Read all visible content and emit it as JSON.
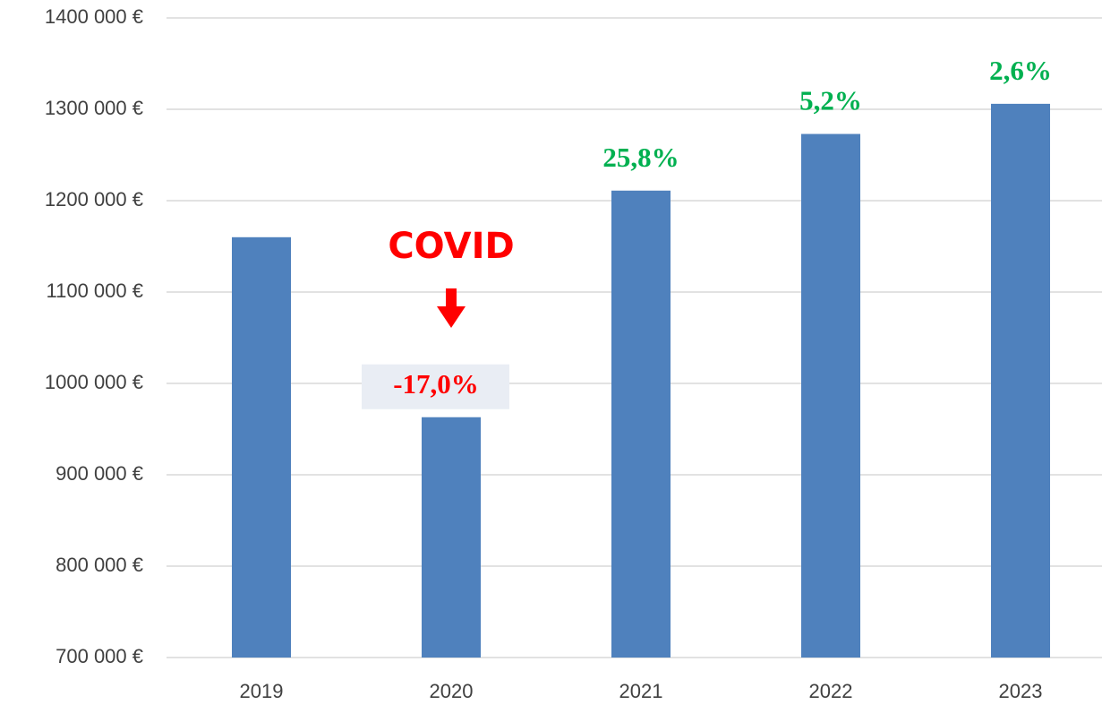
{
  "chart_data": {
    "type": "bar",
    "categories": [
      "2019",
      "2020",
      "2021",
      "2022",
      "2023"
    ],
    "values": [
      1160000,
      963000,
      1211000,
      1273000,
      1306000
    ],
    "color": "#4f81bd",
    "change_labels": [
      null,
      "-17,0%",
      "25,8%",
      "5,2%",
      "2,6%"
    ],
    "change_colors": [
      null,
      "#ff0000",
      "#00b050",
      "#00b050",
      "#00b050"
    ],
    "covid_note": "COVID",
    "covid_color": "#ff0000",
    "ylim": [
      700000,
      1400000
    ],
    "yticks": [
      {
        "value": 700000,
        "label": "700 000 €"
      },
      {
        "value": 800000,
        "label": "800 000 €"
      },
      {
        "value": 900000,
        "label": "900 000 €"
      },
      {
        "value": 1000000,
        "label": "1000 000 €"
      },
      {
        "value": 1100000,
        "label": "1100 000 €"
      },
      {
        "value": 1200000,
        "label": "1200 000 €"
      },
      {
        "value": 1300000,
        "label": "1300 000 €"
      },
      {
        "value": 1400000,
        "label": "1400 000 €"
      }
    ],
    "grid": true
  }
}
